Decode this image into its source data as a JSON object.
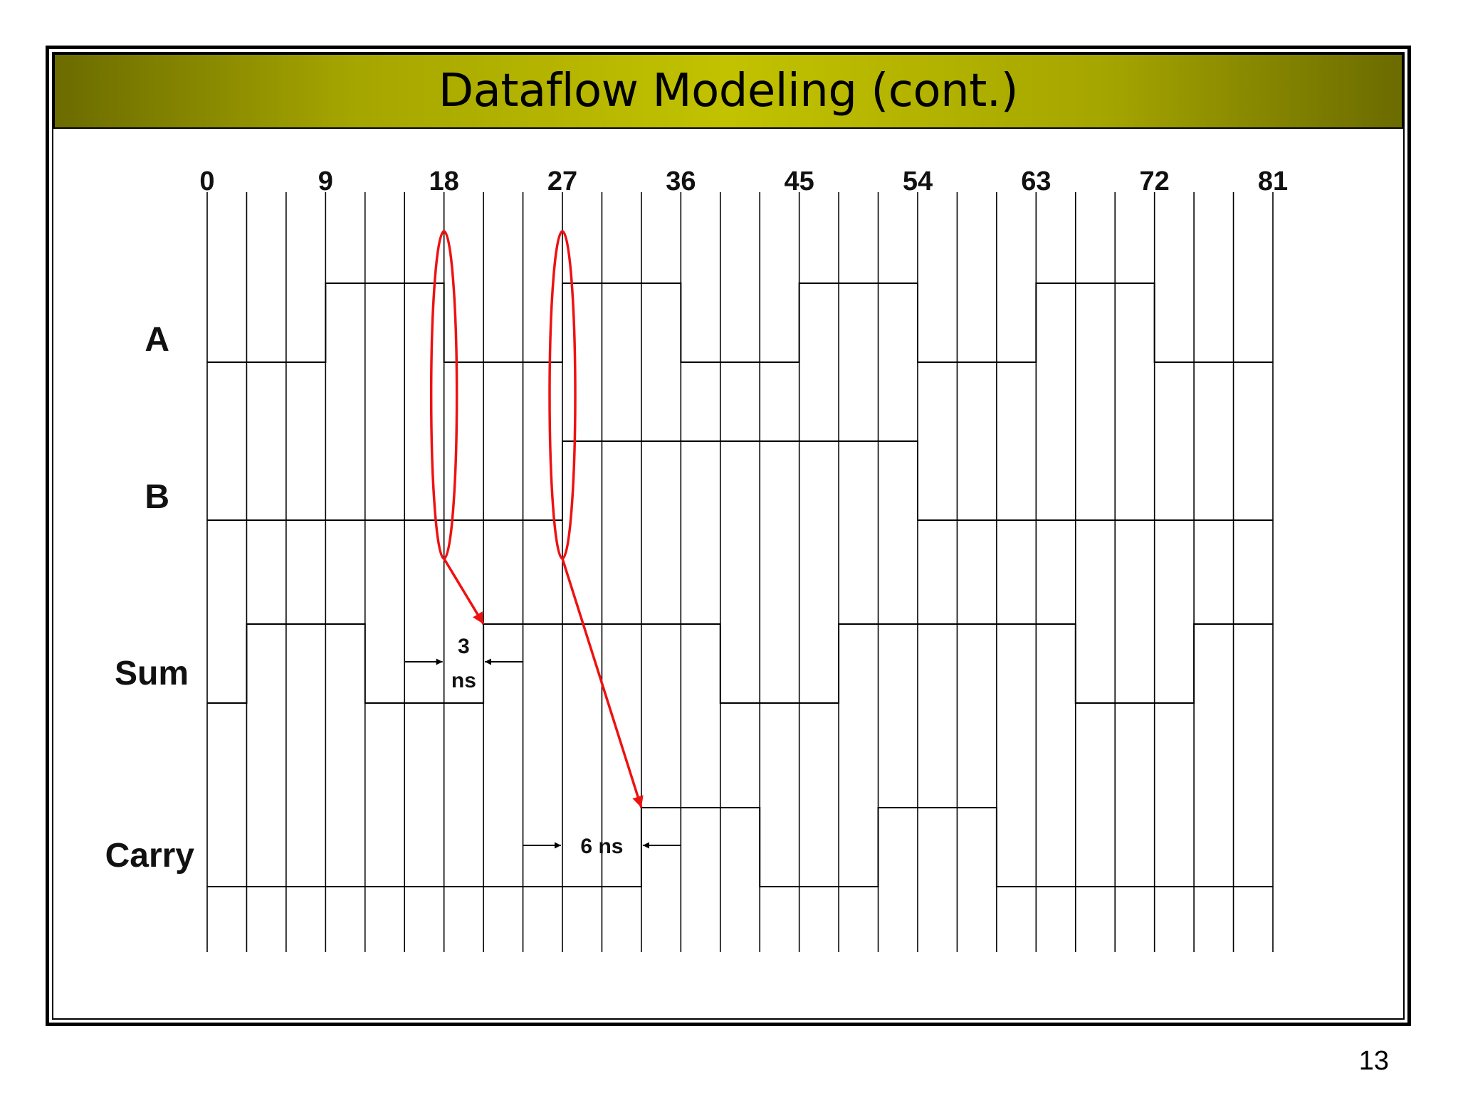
{
  "slide": {
    "title": "Dataflow Modeling (cont.)",
    "page_number": "13"
  },
  "timing_diagram": {
    "time_unit": "ns",
    "tick_labels": [
      "0",
      "9",
      "18",
      "27",
      "36",
      "45",
      "54",
      "63",
      "72",
      "81"
    ],
    "time_start": 0,
    "time_end": 81,
    "grid_step": 3,
    "signals": [
      {
        "name": "A",
        "initial": 0,
        "transitions": [
          {
            "t": 9,
            "v": 1
          },
          {
            "t": 18,
            "v": 0
          },
          {
            "t": 27,
            "v": 1
          },
          {
            "t": 36,
            "v": 0
          },
          {
            "t": 45,
            "v": 1
          },
          {
            "t": 54,
            "v": 0
          },
          {
            "t": 63,
            "v": 1
          },
          {
            "t": 72,
            "v": 0
          }
        ]
      },
      {
        "name": "B",
        "initial": 0,
        "transitions": [
          {
            "t": 27,
            "v": 1
          },
          {
            "t": 54,
            "v": 0
          }
        ]
      },
      {
        "name": "Sum",
        "initial": 0,
        "transitions": [
          {
            "t": 3,
            "v": 1
          },
          {
            "t": 12,
            "v": 0
          },
          {
            "t": 21,
            "v": 1
          },
          {
            "t": 39,
            "v": 0
          },
          {
            "t": 48,
            "v": 1
          },
          {
            "t": 66,
            "v": 0
          },
          {
            "t": 75,
            "v": 1
          }
        ]
      },
      {
        "name": "Carry",
        "initial": 0,
        "transitions": [
          {
            "t": 33,
            "v": 1
          },
          {
            "t": 42,
            "v": 0
          },
          {
            "t": 51,
            "v": 1
          },
          {
            "t": 60,
            "v": 0
          }
        ]
      }
    ],
    "delay_annotations": [
      {
        "label_lines": [
          "3",
          "ns"
        ],
        "from_t": 18,
        "to_t": 21,
        "signal": "Sum"
      },
      {
        "label_lines": [
          "6 ns"
        ],
        "from_t": 27,
        "to_t": 33,
        "signal": "Carry"
      }
    ],
    "causality_highlights": [
      {
        "t": 18,
        "target_t": 21,
        "target_signal": "Sum"
      },
      {
        "t": 27,
        "target_t": 33,
        "target_signal": "Carry"
      }
    ],
    "colors": {
      "waveform": "#000000",
      "grid": "#000000",
      "highlight": "#ee1111",
      "title_bar_center": "#c2c200",
      "title_bar_edge": "#6b6b00"
    }
  }
}
